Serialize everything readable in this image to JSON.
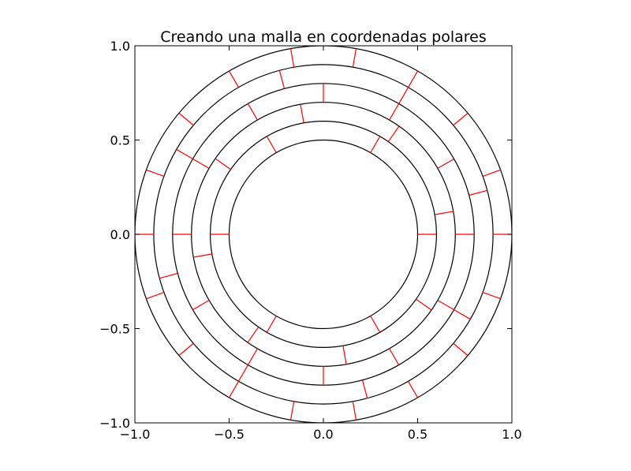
{
  "chart_data": {
    "type": "line",
    "title": "Creando una malla en coordenadas polares",
    "xlabel": "",
    "ylabel": "",
    "xlim": [
      -1.0,
      1.0
    ],
    "ylim": [
      -1.0,
      1.0
    ],
    "x_ticks": [
      -1.0,
      -0.5,
      0.0,
      0.5,
      1.0
    ],
    "x_tick_labels": [
      "−1.0",
      "−0.5",
      "0.0",
      "0.5",
      "1.0"
    ],
    "y_ticks": [
      -1.0,
      -0.5,
      0.0,
      0.5,
      1.0
    ],
    "y_tick_labels": [
      "−1.0",
      "−0.5",
      "0.0",
      "0.5",
      "1.0"
    ],
    "grid": false,
    "aspect": "equal",
    "series": [
      {
        "kind": "circles",
        "color": "#000000",
        "radii": [
          0.5,
          0.6,
          0.7,
          0.8,
          0.9,
          1.0
        ]
      },
      {
        "kind": "radial-segments",
        "color": "#ff0000",
        "ring_bounds": [
          0.5,
          0.6,
          0.7,
          0.8,
          0.9,
          1.0
        ],
        "angles_deg": [
          [
            0,
            60,
            120,
            180,
            240,
            300
          ],
          [
            10,
            55,
            100,
            145,
            190,
            235,
            280,
            325
          ],
          [
            0,
            30,
            60,
            90,
            120,
            150,
            180,
            210,
            240,
            270,
            300,
            330
          ],
          [
            15,
            60,
            105,
            150,
            195,
            240,
            285,
            330
          ],
          [
            0,
            20,
            40,
            60,
            80,
            100,
            120,
            140,
            160,
            180,
            200,
            220,
            240,
            260,
            280,
            300,
            320,
            340
          ]
        ]
      }
    ]
  }
}
